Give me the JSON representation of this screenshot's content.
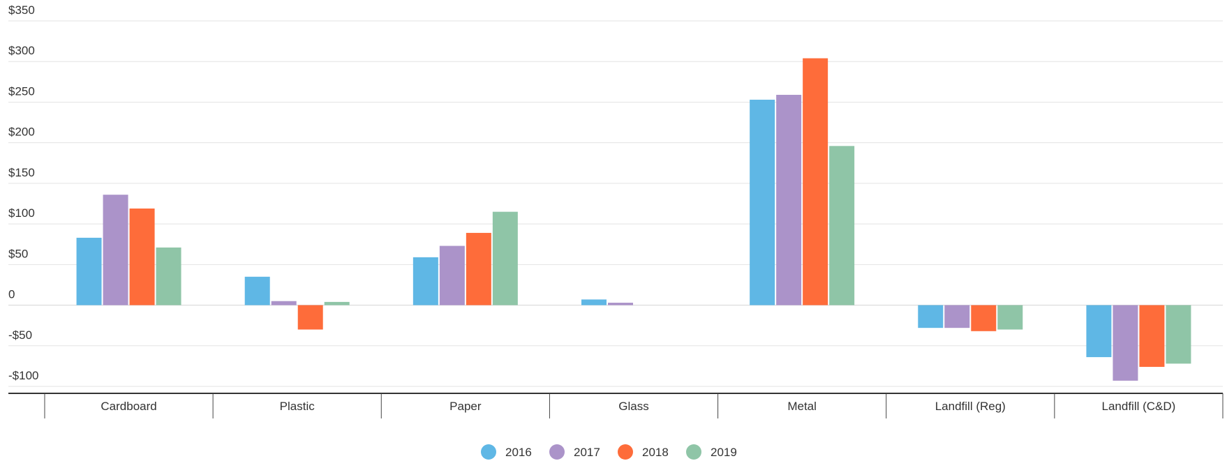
{
  "chart_data": {
    "type": "bar",
    "title": "",
    "xlabel": "",
    "ylabel": "",
    "categories": [
      "Cardboard",
      "Plastic",
      "Paper",
      "Glass",
      "Metal",
      "Landfill (Reg)",
      "Landfill (C&D)"
    ],
    "series": [
      {
        "name": "2016",
        "color": "#5fb7e5",
        "values": [
          83,
          35,
          59,
          7,
          253,
          -28,
          -64
        ]
      },
      {
        "name": "2017",
        "color": "#ab93c9",
        "values": [
          136,
          5,
          73,
          3,
          259,
          -28,
          -93
        ]
      },
      {
        "name": "2018",
        "color": "#fe6c3a",
        "values": [
          119,
          -30,
          89,
          0,
          304,
          -32,
          -76
        ]
      },
      {
        "name": "2019",
        "color": "#8fc5a7",
        "values": [
          71,
          4,
          115,
          0,
          196,
          -30,
          -72
        ]
      }
    ],
    "ylim": [
      -100,
      350
    ],
    "yticks": [
      350,
      300,
      250,
      200,
      150,
      100,
      50,
      0,
      -50,
      -100
    ],
    "ytick_labels": [
      "$350",
      "$300",
      "$250",
      "$200",
      "$150",
      "$100",
      "$50",
      "0",
      "-$50",
      "-$100"
    ],
    "grid": true,
    "legend_position": "bottom-center"
  }
}
